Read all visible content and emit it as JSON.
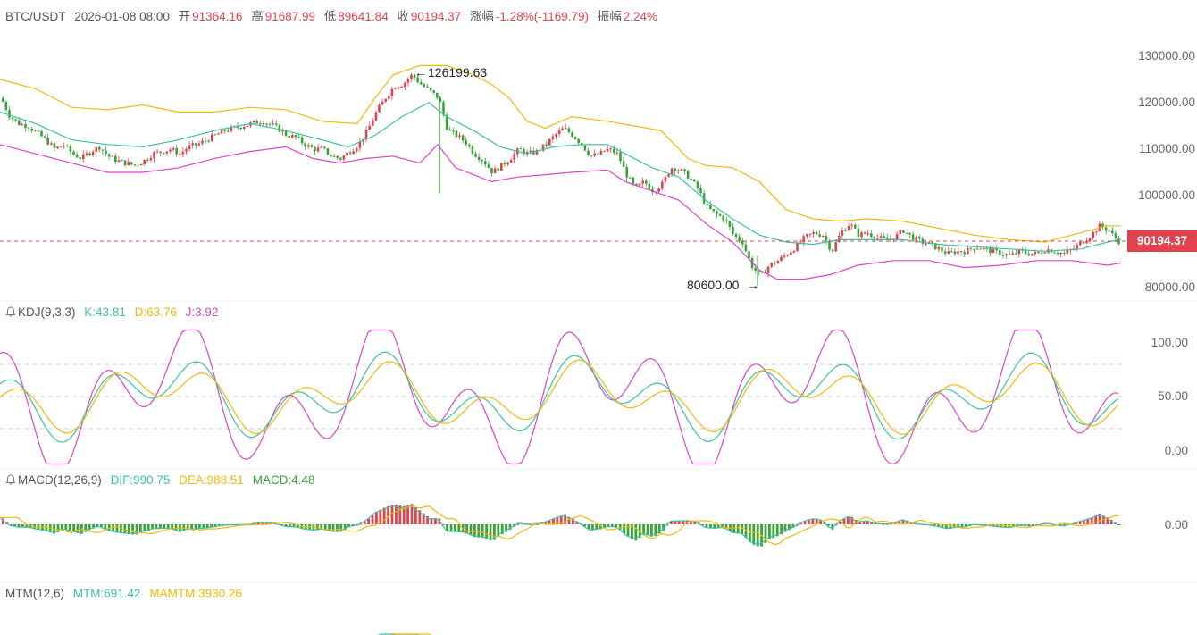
{
  "header": {
    "symbol": "BTC/USDT",
    "datetime": "2026-01-08 08:00",
    "open_label": "开",
    "open": "91364.16",
    "high_label": "高",
    "high": "91687.99",
    "low_label": "低",
    "low": "89641.84",
    "close_label": "收",
    "close": "90194.37",
    "change_label": "涨幅",
    "change": "-1.28%(-1169.79)",
    "amp_label": "振幅",
    "amp": "2.24%"
  },
  "colors": {
    "up": "#e0424e",
    "down": "#3aa33a",
    "ma_yellow": "#f0b90b",
    "ma_teal": "#3cc0a8",
    "ma_magenta": "#d946c6",
    "price_line": "#e0424e"
  },
  "main_panel": {
    "max_marker": "126199.63",
    "min_marker": "80600.00",
    "last_price": "90194.37",
    "y_ticks": [
      "130000.00",
      "120000.00",
      "110000.00",
      "100000.00",
      "80000.00"
    ]
  },
  "kdj": {
    "name": "KDJ(9,3,3)",
    "k": "K:43.81",
    "d": "D:63.76",
    "j": "J:3.92",
    "y_ticks": [
      "100.00",
      "50.00",
      "0.00"
    ]
  },
  "macd": {
    "name": "MACD(12,26,9)",
    "dif": "DIF:990.75",
    "dea": "DEA:988.51",
    "macd": "MACD:4.48",
    "y_ticks": [
      "0.00"
    ]
  },
  "mtm": {
    "name": "MTM(12,6)",
    "mtm": "MTM:691.42",
    "mamtm": "MAMTM:3930.26"
  },
  "chart_data": {
    "type": "line",
    "title": "BTC/USDT",
    "y_range": [
      78000,
      132000
    ],
    "close_series": [
      [
        0,
        121000
      ],
      [
        10,
        117000
      ],
      [
        20,
        115500
      ],
      [
        30,
        115000
      ],
      [
        40,
        113500
      ],
      [
        50,
        112000
      ],
      [
        60,
        110000
      ],
      [
        70,
        111000
      ],
      [
        80,
        109000
      ],
      [
        90,
        108000
      ],
      [
        100,
        109500
      ],
      [
        110,
        110500
      ],
      [
        120,
        108500
      ],
      [
        130,
        107500
      ],
      [
        140,
        107000
      ],
      [
        150,
        106500
      ],
      [
        160,
        107500
      ],
      [
        170,
        109000
      ],
      [
        180,
        109500
      ],
      [
        190,
        110000
      ],
      [
        200,
        109000
      ],
      [
        210,
        110500
      ],
      [
        220,
        111000
      ],
      [
        230,
        112000
      ],
      [
        240,
        113000
      ],
      [
        250,
        114000
      ],
      [
        260,
        114500
      ],
      [
        270,
        115000
      ],
      [
        280,
        115500
      ],
      [
        290,
        116000
      ],
      [
        300,
        115500
      ],
      [
        310,
        114500
      ],
      [
        320,
        113000
      ],
      [
        330,
        112500
      ],
      [
        340,
        111000
      ],
      [
        350,
        110000
      ],
      [
        360,
        110000
      ],
      [
        370,
        108500
      ],
      [
        380,
        108000
      ],
      [
        390,
        109500
      ],
      [
        400,
        111000
      ],
      [
        410,
        114000
      ],
      [
        420,
        118000
      ],
      [
        430,
        121000
      ],
      [
        440,
        123500
      ],
      [
        450,
        124000
      ],
      [
        460,
        126000
      ],
      [
        470,
        124000
      ],
      [
        480,
        122500
      ],
      [
        490,
        121000
      ],
      [
        500,
        114000
      ],
      [
        510,
        113000
      ],
      [
        520,
        111500
      ],
      [
        530,
        109000
      ],
      [
        540,
        107500
      ],
      [
        550,
        105000
      ],
      [
        560,
        106500
      ],
      [
        570,
        108000
      ],
      [
        580,
        110000
      ],
      [
        590,
        109000
      ],
      [
        600,
        109500
      ],
      [
        610,
        111000
      ],
      [
        620,
        113000
      ],
      [
        630,
        114500
      ],
      [
        640,
        113000
      ],
      [
        650,
        111000
      ],
      [
        660,
        108500
      ],
      [
        670,
        109000
      ],
      [
        680,
        110000
      ],
      [
        690,
        109000
      ],
      [
        700,
        104500
      ],
      [
        710,
        101500
      ],
      [
        720,
        103000
      ],
      [
        730,
        101000
      ],
      [
        740,
        102500
      ],
      [
        750,
        106000
      ],
      [
        760,
        105500
      ],
      [
        770,
        104000
      ],
      [
        780,
        101500
      ],
      [
        790,
        97500
      ],
      [
        800,
        96000
      ],
      [
        810,
        95000
      ],
      [
        820,
        91500
      ],
      [
        830,
        90000
      ],
      [
        840,
        85000
      ],
      [
        850,
        82500
      ],
      [
        860,
        85000
      ],
      [
        870,
        86000
      ],
      [
        880,
        87500
      ],
      [
        890,
        89000
      ],
      [
        900,
        91000
      ],
      [
        910,
        92000
      ],
      [
        920,
        91500
      ],
      [
        930,
        88000
      ],
      [
        940,
        92000
      ],
      [
        950,
        94000
      ],
      [
        960,
        91500
      ],
      [
        970,
        92000
      ],
      [
        980,
        91000
      ],
      [
        990,
        90500
      ],
      [
        1000,
        91000
      ],
      [
        1010,
        92500
      ],
      [
        1020,
        91000
      ],
      [
        1030,
        90000
      ],
      [
        1040,
        89500
      ],
      [
        1050,
        88500
      ],
      [
        1060,
        87500
      ],
      [
        1070,
        88000
      ],
      [
        1080,
        88000
      ],
      [
        1090,
        89000
      ],
      [
        1100,
        88500
      ],
      [
        1110,
        88000
      ],
      [
        1120,
        87500
      ],
      [
        1130,
        87000
      ],
      [
        1140,
        88000
      ],
      [
        1150,
        87500
      ],
      [
        1160,
        87500
      ],
      [
        1170,
        88500
      ],
      [
        1180,
        88000
      ],
      [
        1190,
        87500
      ],
      [
        1200,
        88500
      ],
      [
        1210,
        90000
      ],
      [
        1220,
        91500
      ],
      [
        1230,
        93500
      ],
      [
        1240,
        92500
      ],
      [
        1250,
        90194
      ]
    ],
    "upper_band": [
      [
        0,
        125000
      ],
      [
        40,
        123000
      ],
      [
        80,
        119000
      ],
      [
        120,
        118500
      ],
      [
        160,
        119500
      ],
      [
        200,
        118000
      ],
      [
        240,
        118000
      ],
      [
        280,
        119000
      ],
      [
        320,
        118500
      ],
      [
        360,
        116000
      ],
      [
        400,
        115500
      ],
      [
        420,
        121000
      ],
      [
        440,
        126000
      ],
      [
        470,
        128000
      ],
      [
        500,
        128000
      ],
      [
        530,
        126000
      ],
      [
        550,
        124000
      ],
      [
        570,
        121000
      ],
      [
        590,
        116000
      ],
      [
        610,
        114500
      ],
      [
        640,
        117000
      ],
      [
        680,
        116000
      ],
      [
        710,
        115000
      ],
      [
        740,
        114000
      ],
      [
        770,
        108000
      ],
      [
        790,
        106500
      ],
      [
        820,
        106000
      ],
      [
        850,
        103000
      ],
      [
        880,
        97000
      ],
      [
        910,
        95000
      ],
      [
        940,
        94500
      ],
      [
        970,
        95000
      ],
      [
        1010,
        94500
      ],
      [
        1050,
        93000
      ],
      [
        1090,
        91500
      ],
      [
        1130,
        90500
      ],
      [
        1170,
        90000
      ],
      [
        1210,
        92000
      ],
      [
        1240,
        93500
      ],
      [
        1255,
        93500
      ]
    ],
    "middle_band": [
      [
        0,
        118000
      ],
      [
        40,
        115500
      ],
      [
        80,
        112000
      ],
      [
        120,
        111000
      ],
      [
        160,
        110500
      ],
      [
        200,
        112000
      ],
      [
        240,
        114000
      ],
      [
        280,
        115500
      ],
      [
        320,
        114000
      ],
      [
        360,
        112000
      ],
      [
        390,
        110500
      ],
      [
        420,
        113000
      ],
      [
        450,
        117000
      ],
      [
        480,
        120000
      ],
      [
        500,
        117000
      ],
      [
        530,
        114000
      ],
      [
        560,
        110500
      ],
      [
        590,
        109000
      ],
      [
        620,
        110500
      ],
      [
        650,
        111000
      ],
      [
        680,
        111000
      ],
      [
        700,
        109000
      ],
      [
        730,
        106000
      ],
      [
        760,
        104000
      ],
      [
        790,
        99000
      ],
      [
        820,
        95000
      ],
      [
        850,
        91500
      ],
      [
        880,
        90000
      ],
      [
        910,
        89500
      ],
      [
        940,
        90500
      ],
      [
        970,
        90500
      ],
      [
        1010,
        90500
      ],
      [
        1050,
        89500
      ],
      [
        1090,
        89000
      ],
      [
        1130,
        88500
      ],
      [
        1170,
        88000
      ],
      [
        1210,
        88500
      ],
      [
        1240,
        90000
      ],
      [
        1255,
        90500
      ]
    ],
    "lower_band": [
      [
        0,
        111000
      ],
      [
        40,
        109000
      ],
      [
        80,
        107000
      ],
      [
        120,
        105000
      ],
      [
        160,
        105000
      ],
      [
        200,
        106000
      ],
      [
        240,
        108000
      ],
      [
        280,
        109500
      ],
      [
        320,
        110500
      ],
      [
        350,
        108000
      ],
      [
        380,
        107000
      ],
      [
        410,
        108000
      ],
      [
        440,
        108500
      ],
      [
        470,
        107000
      ],
      [
        490,
        111000
      ],
      [
        510,
        106000
      ],
      [
        550,
        103000
      ],
      [
        580,
        104000
      ],
      [
        610,
        104500
      ],
      [
        640,
        105000
      ],
      [
        680,
        105500
      ],
      [
        700,
        103000
      ],
      [
        730,
        101000
      ],
      [
        760,
        99000
      ],
      [
        790,
        94000
      ],
      [
        820,
        90000
      ],
      [
        850,
        84000
      ],
      [
        870,
        82000
      ],
      [
        900,
        82000
      ],
      [
        930,
        83000
      ],
      [
        960,
        85000
      ],
      [
        1000,
        86000
      ],
      [
        1040,
        86000
      ],
      [
        1080,
        84500
      ],
      [
        1120,
        85000
      ],
      [
        1160,
        86000
      ],
      [
        1200,
        86000
      ],
      [
        1240,
        85000
      ],
      [
        1255,
        85500
      ]
    ]
  }
}
